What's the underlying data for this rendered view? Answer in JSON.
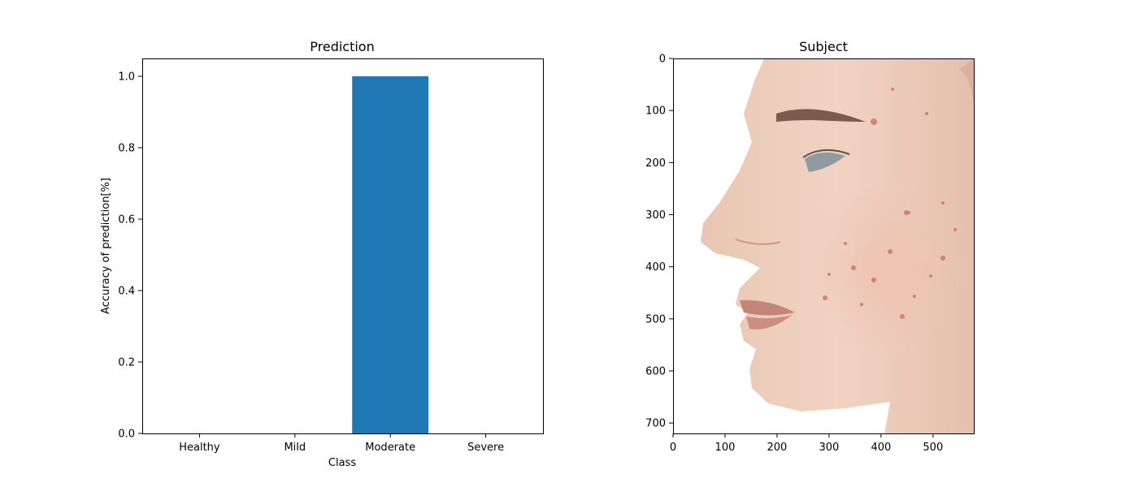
{
  "colors": {
    "bar": "#1f77b4",
    "axes": "#000000",
    "background": "#ffffff"
  },
  "chart_data": [
    {
      "type": "bar",
      "title": "Prediction",
      "xlabel": "Class",
      "ylabel": "Accuracy of prediction[%]",
      "categories": [
        "Healthy",
        "Mild",
        "Moderate",
        "Severe"
      ],
      "values": [
        0.0,
        0.0,
        1.0,
        0.0
      ],
      "ylim": [
        0,
        1.05
      ],
      "yticks": [
        0.0,
        0.2,
        0.4,
        0.6,
        0.8,
        1.0
      ],
      "ytick_labels": [
        "0.0",
        "0.2",
        "0.4",
        "0.6",
        "0.8",
        "1.0"
      ],
      "grid": false
    },
    {
      "type": "image",
      "title": "Subject",
      "image_description": "side-profile photo of a young man's face with acne on the cheek",
      "xlim": [
        0,
        580
      ],
      "ylim": [
        720,
        0
      ],
      "xticks": [
        0,
        100,
        200,
        300,
        400,
        500
      ],
      "yticks": [
        0,
        100,
        200,
        300,
        400,
        500,
        600,
        700
      ],
      "grid": false
    }
  ]
}
